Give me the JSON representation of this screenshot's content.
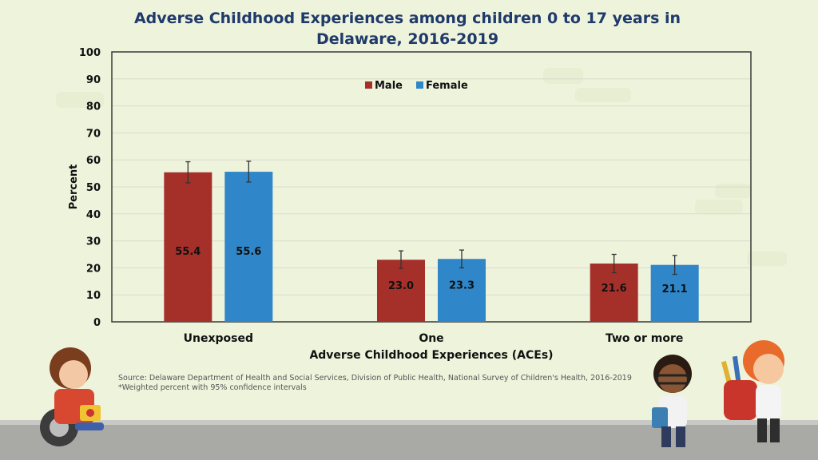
{
  "title_line1": "Adverse Childhood Experiences among children 0 to 17 years in",
  "title_line2": "Delaware, 2016-2019",
  "source_line1": "Source: Delaware Department of Health and Social Services, Division of Public Health, National Survey of Children's Health, 2016-2019",
  "source_line2": "*Weighted percent with 95% confidence intervals",
  "colors": {
    "male": "#a5302a",
    "female": "#2f86c8",
    "title": "#1f3a6b"
  },
  "chart_data": {
    "type": "bar",
    "categories": [
      "Unexposed",
      "One",
      "Two or more"
    ],
    "series": [
      {
        "name": "Male",
        "values": [
          55.4,
          23.0,
          21.6
        ],
        "ci_low": [
          51.5,
          19.8,
          18.2
        ],
        "ci_high": [
          59.3,
          26.3,
          25.0
        ]
      },
      {
        "name": "Female",
        "values": [
          55.6,
          23.3,
          21.1
        ],
        "ci_low": [
          51.8,
          20.0,
          17.6
        ],
        "ci_high": [
          59.5,
          26.6,
          24.6
        ]
      }
    ],
    "value_labels": [
      [
        "55.4",
        "23.0",
        "21.6"
      ],
      [
        "55.6",
        "23.3",
        "21.1"
      ]
    ],
    "xlabel": "Adverse Childhood Experiences (ACEs)",
    "ylabel": "Percent",
    "ylim": [
      0,
      100
    ],
    "yticks": [
      "0",
      "10",
      "20",
      "30",
      "40",
      "50",
      "60",
      "70",
      "80",
      "90",
      "100"
    ],
    "grid": true,
    "legend_position": "top-center"
  }
}
